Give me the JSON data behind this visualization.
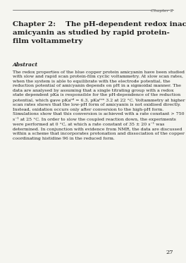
{
  "background_color": "#f5f5f0",
  "header_line_color": "#555555",
  "header_chapter_text": "Chapter 2",
  "chapter_title": "Chapter 2:  The pH-dependent redox inactivation of\namicyanin as studied by rapid protein-\nfilm voltammetry",
  "abstract_heading": "Abstract",
  "abstract_body": "The redox properties of the blue copper protein amicyanin have been studied with slow and rapid scan protein-film cyclic voltammetry. At slow scan rates, when the system is able to equilibrate with the electrode potential, the reduction potential of amicyanin depends on pH in a sigmoidal manner. The data are analysed by assuming that a single titrating group with a redox state dependent pKa is responsible for the pH-dependence of the reduction potential, which gave pKaᵒᵈ = 6.3, pKaʳᵒˣ 3.2 at 22 °C. Voltammetry at higher scan rates shows that the low-pH form of amicyanin is not oxidised directly. Instead, oxidation occurs only after conversion to the high-pH form. Simulations show that this conversion is achieved with a rate constant > 750 s⁻¹ at 25 °C. In order to slow the coupled reaction down, the experiments were performed at 0 °C, at which a rate constant of 35 ± 20 s⁻¹ was determined. In conjunction with evidence from NMR, the data are discussed within a scheme that incorporates protonation and dissociation of the copper coordinating histidine 96 in the reduced form.",
  "page_number": "27",
  "text_color": "#222222",
  "light_text_color": "#555555"
}
